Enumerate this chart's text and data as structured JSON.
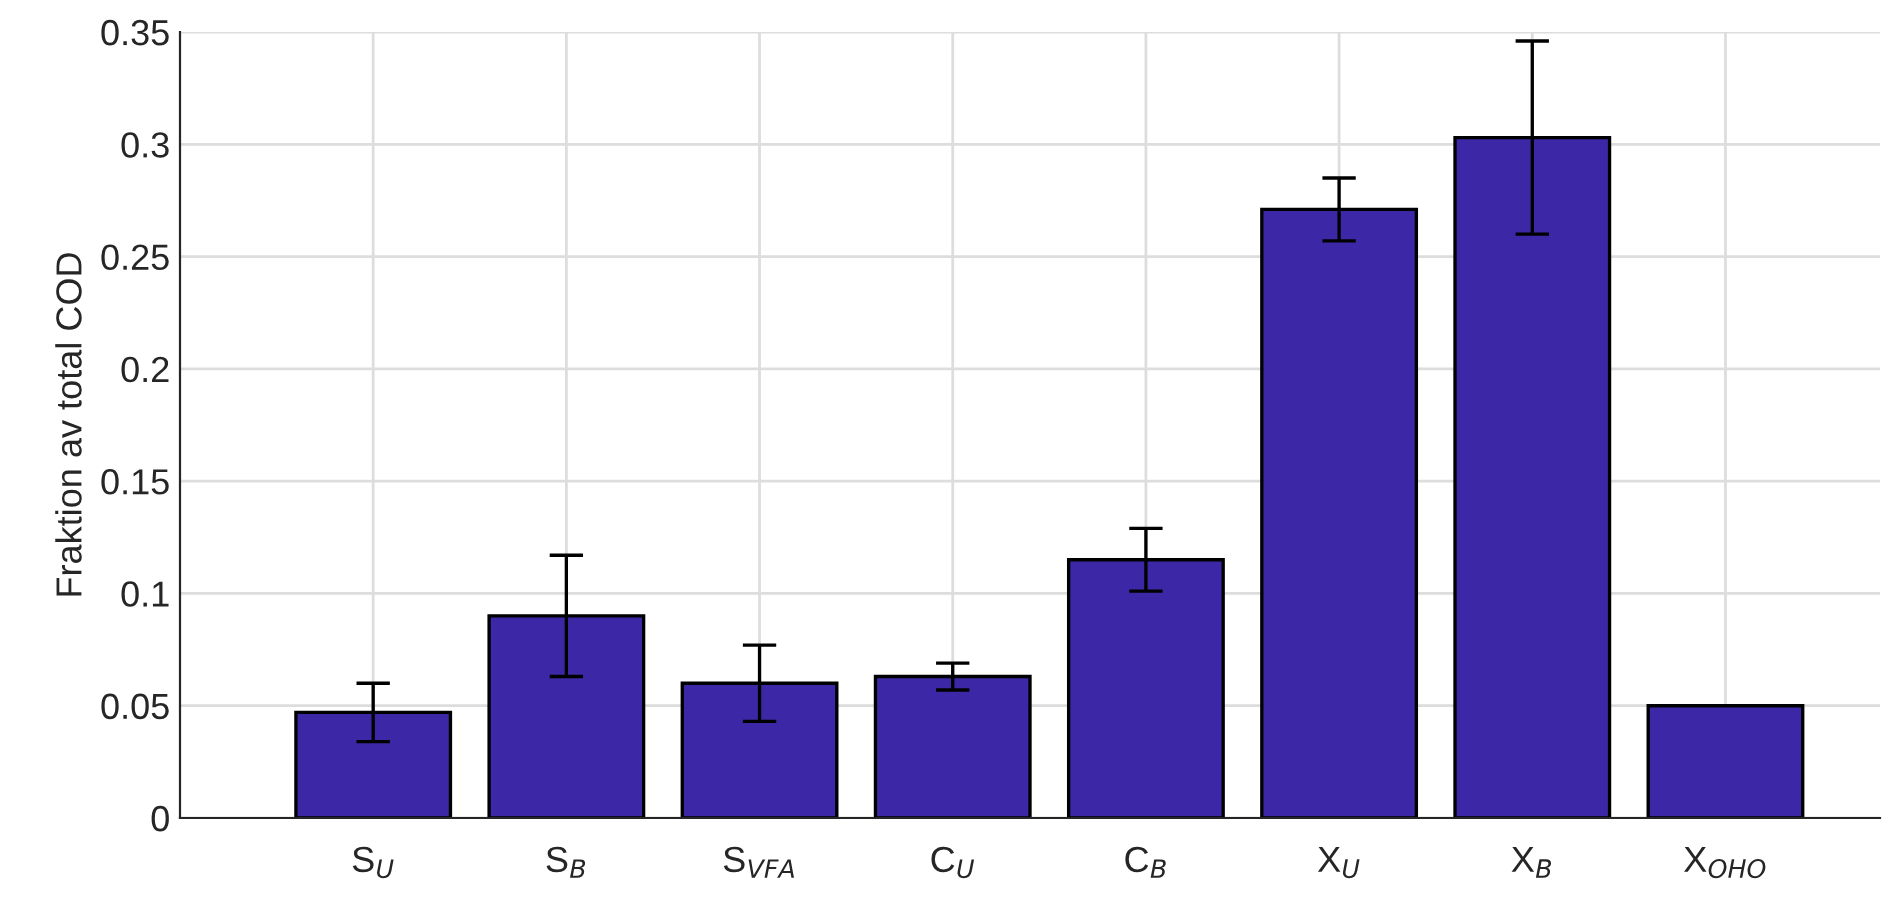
{
  "chart_data": {
    "type": "bar",
    "ylabel": "Fraktion av total COD",
    "categories": [
      "S$_{U}$",
      "S$_{B}$",
      "S$_{VFA}$",
      "C$_{U}$",
      "C$_{B}$",
      "X$_{U}$",
      "X$_{B}$",
      "X$_{OHO}$"
    ],
    "values": [
      0.047,
      0.09,
      0.06,
      0.063,
      0.115,
      0.271,
      0.303,
      0.05
    ],
    "errors": [
      0.013,
      0.027,
      0.017,
      0.006,
      0.014,
      0.014,
      0.043,
      null
    ],
    "color": "#3c28a6",
    "ylim": [
      0,
      0.35
    ],
    "yticks": [
      0,
      0.05,
      0.1,
      0.15,
      0.2,
      0.25,
      0.3,
      0.35
    ],
    "grid": true
  }
}
